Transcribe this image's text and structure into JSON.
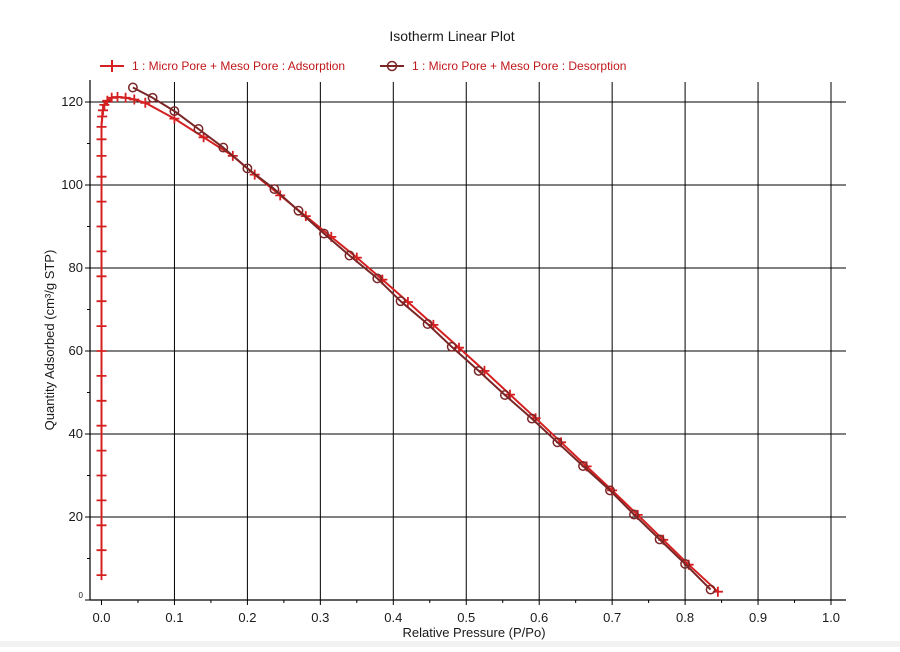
{
  "chart_data": {
    "type": "line",
    "title": "Isotherm Linear Plot",
    "xlabel": "Relative Pressure (P/Po)",
    "ylabel": "Quantity Adsorbed (cm³/g STP)",
    "xlim": [
      0.0,
      1.02
    ],
    "ylim": [
      0,
      125
    ],
    "xticks": [
      0.0,
      0.1,
      0.2,
      0.3,
      0.4,
      0.5,
      0.6,
      0.7,
      0.8,
      0.9,
      1.0
    ],
    "xtick_labels": [
      "0.0",
      "0.1",
      "0.2",
      "0.3",
      "0.4",
      "0.5",
      "0.6",
      "0.7",
      "0.8",
      "0.9",
      "1.0"
    ],
    "yticks": [
      0,
      20,
      40,
      60,
      80,
      100,
      120
    ],
    "ytick_labels": [
      "0",
      "20",
      "40",
      "60",
      "80",
      "100",
      "120"
    ],
    "grid": true,
    "legend_position": "top",
    "series": [
      {
        "name": "1 : Micro Pore +  Meso Pore : Adsorption",
        "color": "#d42020",
        "marker": "plus",
        "x": [
          0.0,
          0.0,
          0.0,
          0.0,
          0.0,
          0.0,
          0.0,
          0.0,
          0.0,
          0.0,
          0.0,
          0.0,
          0.0,
          0.0,
          0.0,
          0.0,
          0.0,
          0.0,
          0.0,
          0.0,
          0.001,
          0.002,
          0.004,
          0.008,
          0.014,
          0.022,
          0.033,
          0.045,
          0.06,
          0.1,
          0.14,
          0.18,
          0.21,
          0.245,
          0.28,
          0.315,
          0.35,
          0.385,
          0.42,
          0.455,
          0.49,
          0.525,
          0.56,
          0.595,
          0.63,
          0.665,
          0.7,
          0.735,
          0.77,
          0.805,
          0.845
        ],
        "y": [
          6,
          12,
          18,
          24,
          30,
          36,
          42,
          48,
          54,
          60,
          66,
          72,
          78,
          84,
          90,
          96,
          102,
          107,
          111,
          114,
          116.5,
          118,
          119.3,
          120.3,
          121,
          121.2,
          121,
          120.6,
          119.8,
          116,
          111.5,
          107,
          102.5,
          97.5,
          92.5,
          87.5,
          82.5,
          77.2,
          71.8,
          66.3,
          60.8,
          55.2,
          49.5,
          43.8,
          38,
          32.2,
          26.4,
          20.5,
          14.5,
          8.5,
          2
        ]
      },
      {
        "name": "1 : Micro Pore +  Meso Pore : Desorption",
        "color": "#7a2626",
        "marker": "circle",
        "x": [
          0.043,
          0.07,
          0.1,
          0.133,
          0.167,
          0.2,
          0.237,
          0.27,
          0.305,
          0.34,
          0.378,
          0.41,
          0.447,
          0.48,
          0.517,
          0.553,
          0.59,
          0.625,
          0.66,
          0.697,
          0.73,
          0.765,
          0.8,
          0.835
        ],
        "y": [
          123.5,
          121,
          117.8,
          113.5,
          109,
          104,
          99,
          93.8,
          88.3,
          83,
          77.5,
          72,
          66.5,
          61,
          55.2,
          49.4,
          43.7,
          38,
          32.3,
          26.4,
          20.6,
          14.6,
          8.7,
          2.5
        ]
      }
    ]
  }
}
